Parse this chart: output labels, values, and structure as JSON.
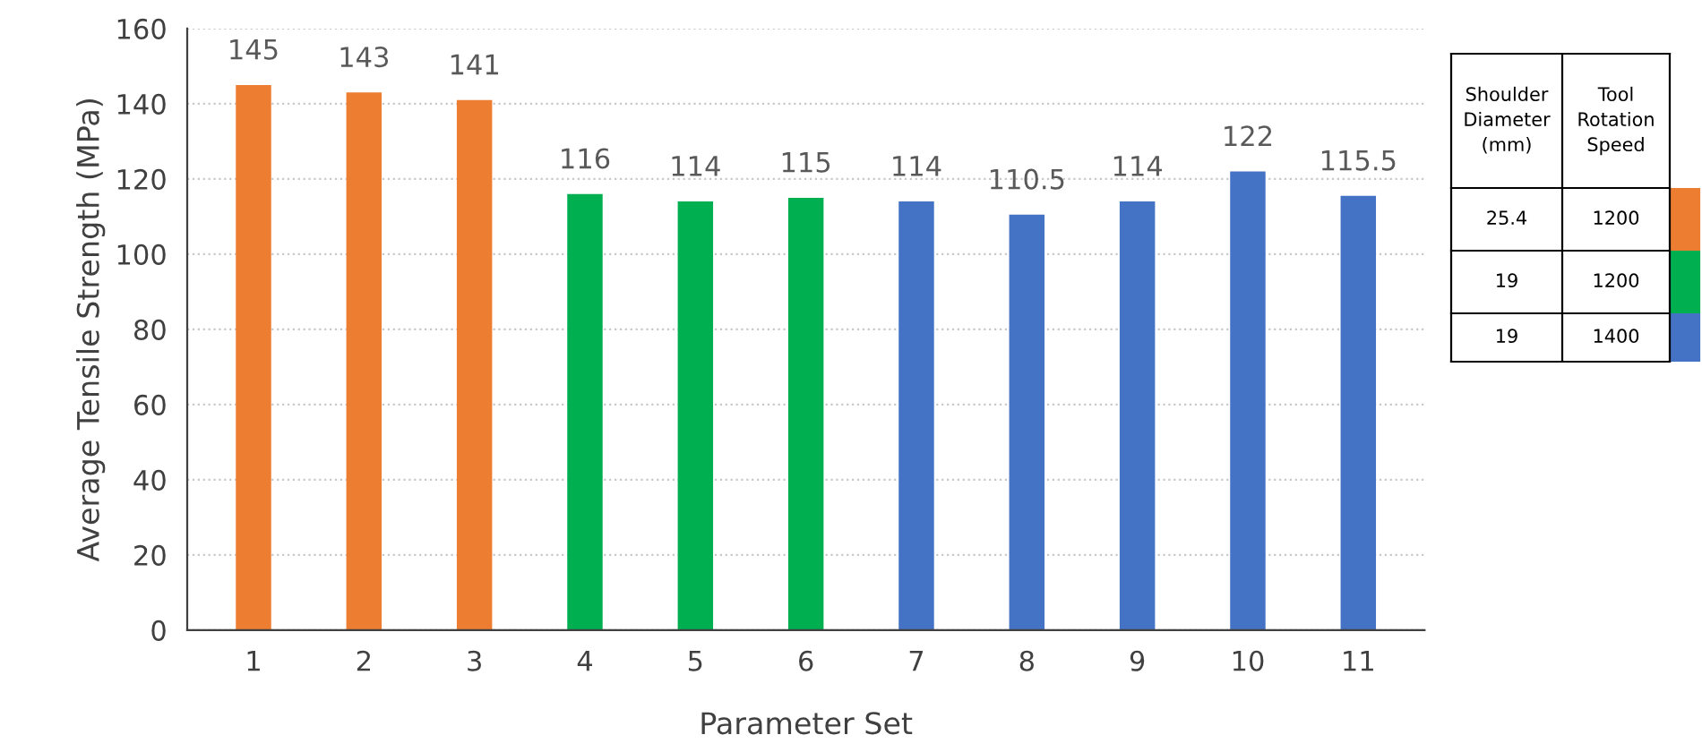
{
  "chart_data": {
    "type": "bar",
    "xlabel": "Parameter Set",
    "ylabel": "Average Tensile Strength (MPa)",
    "categories": [
      "1",
      "2",
      "3",
      "4",
      "5",
      "6",
      "7",
      "8",
      "9",
      "10",
      "11"
    ],
    "values": [
      145,
      143,
      141,
      116,
      114,
      115,
      114,
      110.5,
      114,
      122,
      115.5
    ],
    "colors": [
      "#ed7d31",
      "#ed7d31",
      "#ed7d31",
      "#00b050",
      "#00b050",
      "#00b050",
      "#4472c4",
      "#4472c4",
      "#4472c4",
      "#4472c4",
      "#4472c4"
    ],
    "ylim": [
      0,
      160
    ],
    "yticks": [
      0,
      20,
      40,
      60,
      80,
      100,
      120,
      140,
      160
    ],
    "grid": "y",
    "data_labels": true,
    "annotations": [
      "Shoulder\nDiameter\n(mm)",
      "Tool\nRotation\nSpeed",
      "25.4",
      "1200",
      "19",
      "1200",
      "19",
      "1400"
    ]
  }
}
